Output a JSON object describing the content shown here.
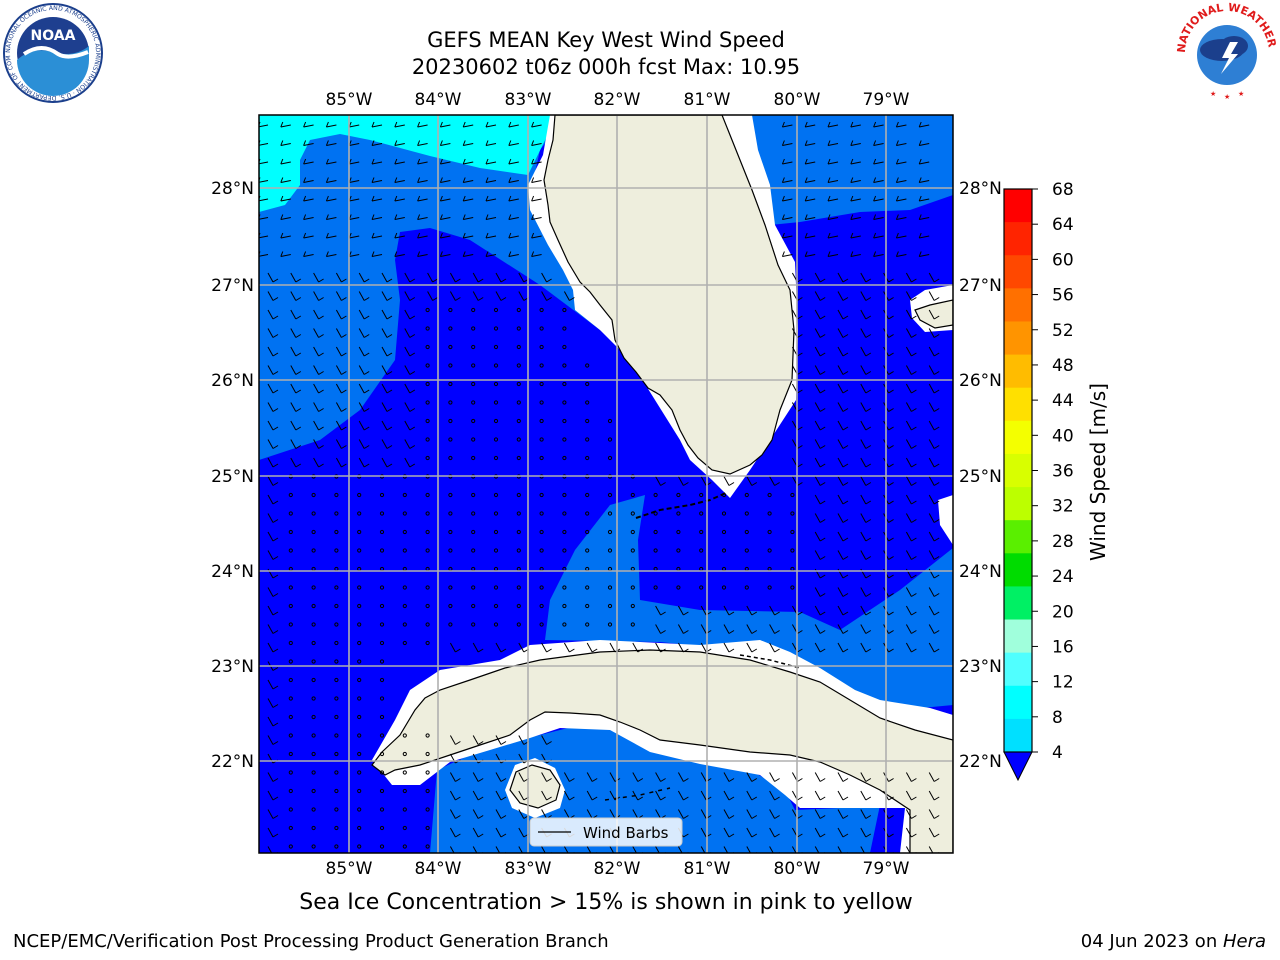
{
  "header": {
    "title_line1": "GEFS MEAN Key West Wind Speed",
    "title_line2": "20230602 t06z 000h fcst   Max: 10.95"
  },
  "map": {
    "lon_labels": [
      "85°W",
      "84°W",
      "83°W",
      "82°W",
      "81°W",
      "80°W",
      "79°W"
    ],
    "lat_labels": [
      "28°N",
      "27°N",
      "26°N",
      "25°N",
      "24°N",
      "23°N",
      "22°N"
    ],
    "legend_label": "Wind Barbs",
    "colors": {
      "land": "#eeeedd",
      "ocean_4_8": "#0000ff",
      "ocean_8_12": "#0072f2",
      "ocean_12_16": "#00ffff",
      "gridline": "#b0b0b0"
    }
  },
  "colorbar": {
    "label": "Wind Speed [m/s]",
    "ticks": [
      "68",
      "64",
      "60",
      "56",
      "52",
      "48",
      "44",
      "40",
      "36",
      "32",
      "28",
      "24",
      "20",
      "16",
      "12",
      "8",
      "4"
    ],
    "colors": [
      "#ff0000",
      "#ff2400",
      "#ff4800",
      "#ff7000",
      "#ff9400",
      "#ffbc00",
      "#ffe000",
      "#f4ff00",
      "#d8ff00",
      "#bcff00",
      "#5aef00",
      "#00dc00",
      "#00f064",
      "#a0ffdc",
      "#50ffff",
      "#00ffff",
      "#00e0ff",
      "#0072f2"
    ],
    "extend_color": "#0000ff"
  },
  "notes": {
    "sea_ice": "Sea Ice Concentration > 15% is shown in pink to yellow"
  },
  "footer": {
    "left": "NCEP/EMC/Verification Post Processing Product Generation Branch",
    "right_prefix": "04 Jun 2023 on ",
    "right_host": "Hera"
  },
  "logos": {
    "noaa_text": "NOAA",
    "noaa_ring": "NATIONAL OCEANIC AND ATMOSPHERIC ADMINISTRATION · U.S. DEPARTMENT OF COMMERCE",
    "nws_ring": "NATIONAL WEATHER SERVICE"
  }
}
